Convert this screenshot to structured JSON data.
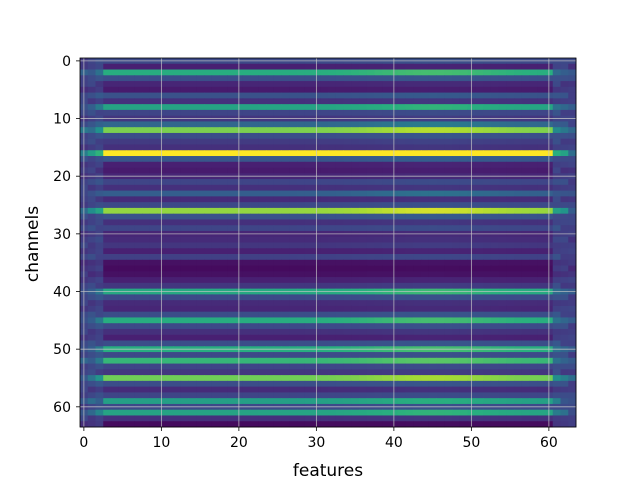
{
  "chart_data": {
    "type": "heatmap",
    "title": "",
    "xlabel": "features",
    "ylabel": "channels",
    "n_rows": 64,
    "n_cols": 64,
    "xlim": [
      -0.5,
      63.5
    ],
    "ylim": [
      63.5,
      -0.5
    ],
    "x_ticks": [
      0,
      10,
      20,
      30,
      40,
      50,
      60
    ],
    "y_ticks": [
      0,
      10,
      20,
      30,
      40,
      50,
      60
    ],
    "x_tick_labels": [
      "0",
      "10",
      "20",
      "30",
      "40",
      "50",
      "60"
    ],
    "y_tick_labels": [
      "0",
      "10",
      "20",
      "30",
      "40",
      "50",
      "60"
    ],
    "grid": true,
    "colormap": "viridis",
    "value_range": [
      0,
      1
    ],
    "row_levels": [
      0.28,
      0.12,
      0.62,
      0.3,
      0.14,
      0.1,
      0.32,
      0.18,
      0.58,
      0.26,
      0.2,
      0.4,
      0.8,
      0.3,
      0.22,
      0.18,
      1.0,
      0.34,
      0.12,
      0.1,
      0.14,
      0.26,
      0.18,
      0.38,
      0.16,
      0.28,
      0.84,
      0.32,
      0.18,
      0.26,
      0.14,
      0.16,
      0.2,
      0.12,
      0.24,
      0.06,
      0.04,
      0.06,
      0.12,
      0.2,
      0.6,
      0.28,
      0.16,
      0.14,
      0.3,
      0.62,
      0.28,
      0.18,
      0.12,
      0.3,
      0.62,
      0.28,
      0.66,
      0.26,
      0.2,
      0.78,
      0.3,
      0.16,
      0.26,
      0.56,
      0.28,
      0.58,
      0.18,
      0.04
    ],
    "column_profile": {
      "edge_columns": 3,
      "edge_level": 0.55,
      "peak_column": 45,
      "peak_boost": 0.12
    }
  }
}
